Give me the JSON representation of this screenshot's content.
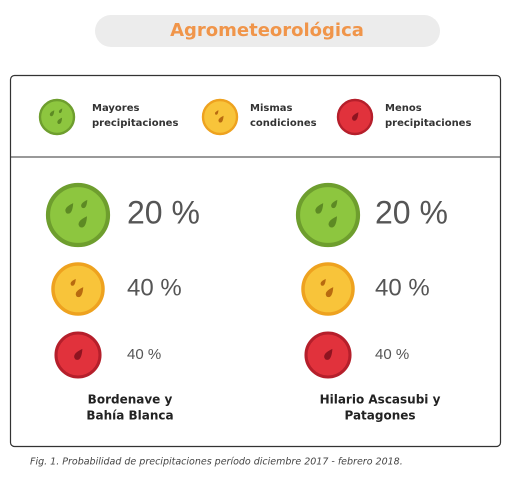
{
  "header": {
    "title": "Agrometeorológica"
  },
  "legend": {
    "items": [
      {
        "lines": [
          "Mayores",
          "precipitaciones"
        ]
      },
      {
        "lines": [
          "Mismas",
          "condiciones"
        ]
      },
      {
        "lines": [
          "Menos",
          "precipitaciones"
        ]
      }
    ]
  },
  "columns": [
    {
      "rows": [
        "20 %",
        "40 %",
        "40 %"
      ],
      "lines": [
        "Bordenave y",
        "Bahía Blanca"
      ]
    },
    {
      "rows": [
        "20 %",
        "40 %",
        "40 %"
      ],
      "lines": [
        "Hilario Ascasubi y",
        "Patagones"
      ]
    }
  ],
  "caption": "Fig. 1. Probabilidad de precipitaciones período diciembre 2017 - febrero 2018."
}
